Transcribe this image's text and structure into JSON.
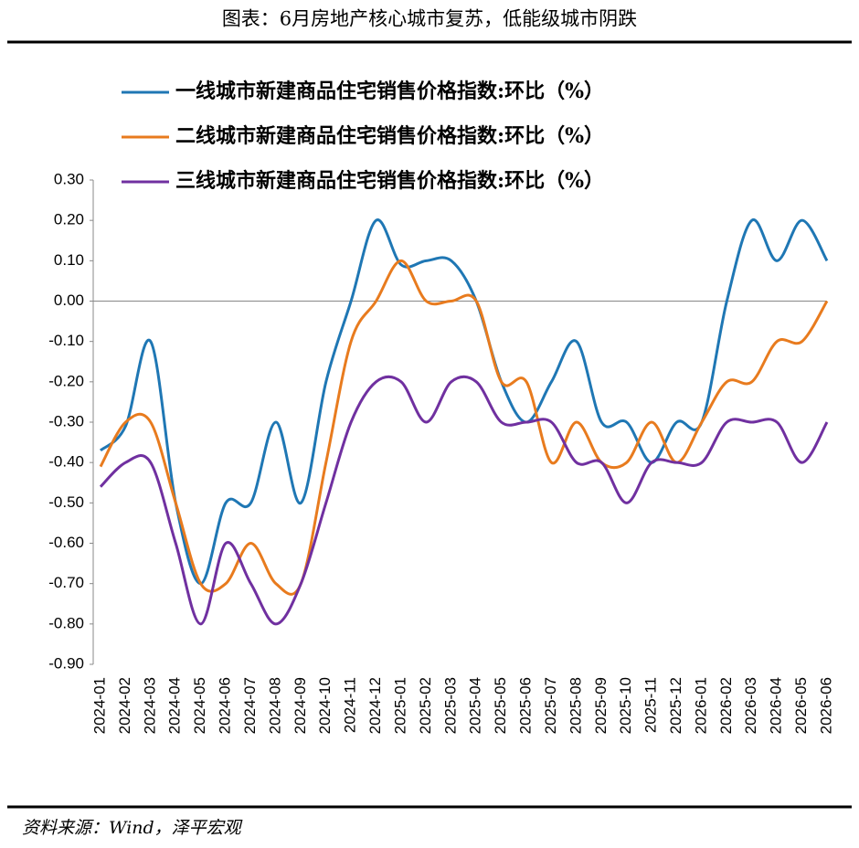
{
  "chart_data": {
    "type": "line",
    "title": "图表：6月房地产核心城市复苏，低能级城市阴跌",
    "source": "资料来源：Wind，泽平宏观",
    "categories": [
      "2024-01",
      "2024-02",
      "2024-03",
      "2024-04",
      "2024-05",
      "2024-06",
      "2024-07",
      "2024-08",
      "2024-09",
      "2024-10",
      "2024-11",
      "2024-12",
      "2025-01",
      "2025-02",
      "2025-03",
      "2025-04",
      "2025-05",
      "2025-06",
      "2025-07",
      "2025-08",
      "2025-09",
      "2025-10",
      "2025-11",
      "2025-12",
      "2026-01",
      "2026-02",
      "2026-03",
      "2026-04",
      "2026-05",
      "2026-06"
    ],
    "series": [
      {
        "name": "一线城市新建商品住宅销售价格指数:环比（%）",
        "color": "#1f77b4",
        "values": [
          -0.37,
          -0.31,
          -0.1,
          -0.5,
          -0.7,
          -0.5,
          -0.5,
          -0.3,
          -0.5,
          -0.2,
          0.0,
          0.2,
          0.09,
          0.1,
          0.1,
          0.0,
          -0.2,
          -0.3,
          -0.2,
          -0.1,
          -0.3,
          -0.3,
          -0.4,
          -0.3,
          -0.3,
          0.0,
          0.2,
          0.1,
          0.2,
          0.1
        ]
      },
      {
        "name": "二线城市新建商品住宅销售价格指数:环比（%）",
        "color": "#e87b1e",
        "values": [
          -0.41,
          -0.3,
          -0.3,
          -0.5,
          -0.7,
          -0.7,
          -0.6,
          -0.7,
          -0.7,
          -0.4,
          -0.1,
          0.0,
          0.1,
          0.0,
          0.0,
          0.0,
          -0.2,
          -0.2,
          -0.4,
          -0.3,
          -0.4,
          -0.4,
          -0.3,
          -0.4,
          -0.3,
          -0.2,
          -0.2,
          -0.1,
          -0.1,
          0.0
        ]
      },
      {
        "name": "三线城市新建商品住宅销售价格指数:环比（%）",
        "color": "#7030a0",
        "values": [
          -0.46,
          -0.4,
          -0.4,
          -0.6,
          -0.8,
          -0.6,
          -0.7,
          -0.8,
          -0.7,
          -0.5,
          -0.3,
          -0.2,
          -0.2,
          -0.3,
          -0.2,
          -0.2,
          -0.3,
          -0.3,
          -0.3,
          -0.4,
          -0.4,
          -0.5,
          -0.4,
          -0.4,
          -0.4,
          -0.3,
          -0.3,
          -0.3,
          -0.4,
          -0.3
        ]
      }
    ],
    "ylim": [
      -0.9,
      0.3
    ],
    "yticks": [
      {
        "value": 0.3,
        "label": "0.30"
      },
      {
        "value": 0.2,
        "label": "0.20"
      },
      {
        "value": 0.1,
        "label": "0.10"
      },
      {
        "value": 0,
        "label": "0.00"
      },
      {
        "value": -0.1,
        "label": "-0.10"
      },
      {
        "value": -0.2,
        "label": "-0.20"
      },
      {
        "value": -0.3,
        "label": "-0.30"
      },
      {
        "value": -0.4,
        "label": "-0.40"
      },
      {
        "value": -0.5,
        "label": "-0.50"
      },
      {
        "value": -0.6,
        "label": "-0.60"
      },
      {
        "value": -0.7,
        "label": "-0.70"
      },
      {
        "value": -0.8,
        "label": "-0.80"
      },
      {
        "value": -0.9,
        "label": "-0.90"
      }
    ],
    "grid": false,
    "smooth": true
  }
}
